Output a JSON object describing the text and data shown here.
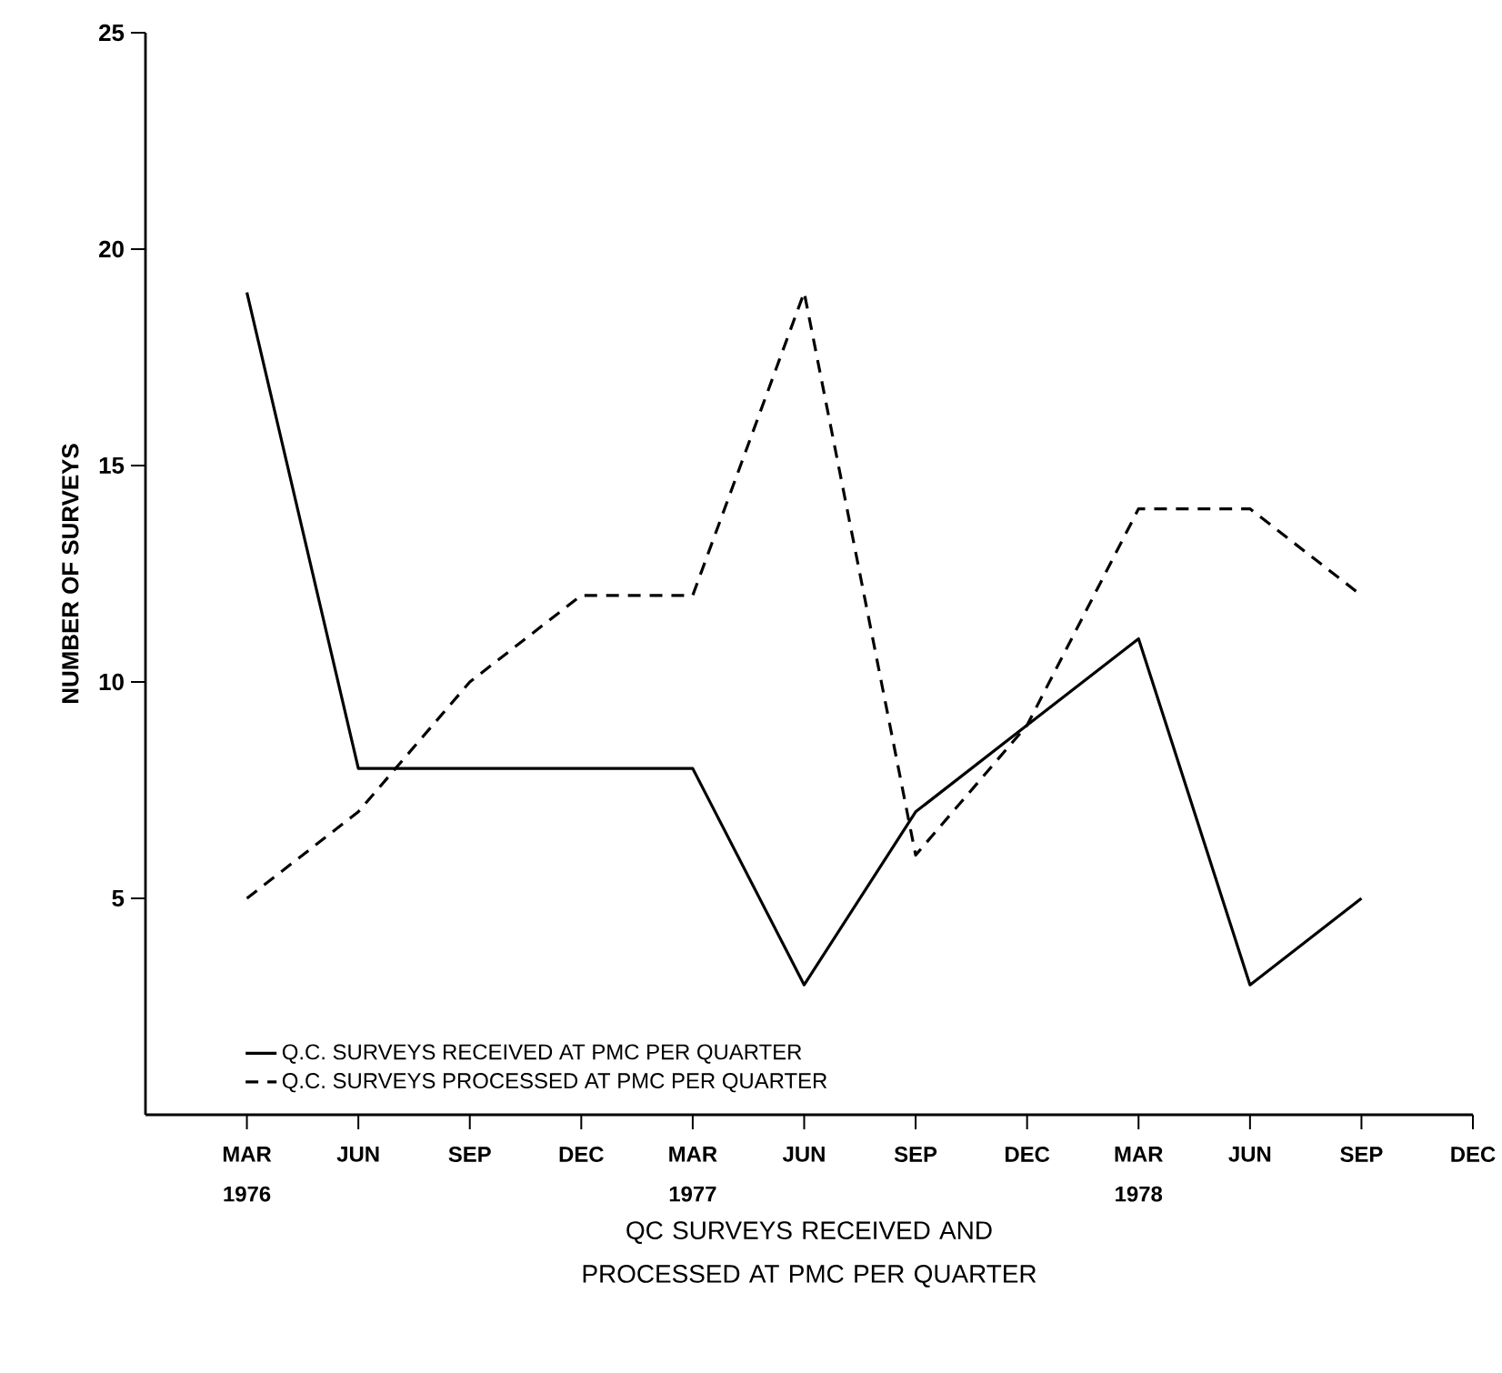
{
  "chart_data": {
    "type": "line",
    "xlabel": "QC SURVEYS RECEIVED AND PROCESSED AT PMC PER QUARTER",
    "ylabel": "NUMBER OF SURVEYS",
    "categories": [
      "MAR 1976",
      "JUN",
      "SEP",
      "DEC",
      "MAR 1977",
      "JUN",
      "SEP",
      "DEC",
      "MAR 1978",
      "JUN",
      "SEP",
      "DEC"
    ],
    "series": [
      {
        "name": "Q.C. SURVEYS RECEIVED AT PMC PER QUARTER",
        "color": "#000000",
        "line_style": "solid",
        "values": [
          19,
          8,
          8,
          8,
          8,
          3,
          7,
          9,
          11,
          3,
          5,
          null
        ]
      },
      {
        "name": "Q.C. SURVEYS PROCESSED AT PMC PER QUARTER",
        "color": "#000000",
        "line_style": "dashed",
        "values": [
          5,
          7,
          10,
          12,
          12,
          19,
          6,
          9,
          14,
          14,
          12,
          null
        ]
      }
    ],
    "ylim": [
      0,
      25
    ],
    "yticks": [
      5,
      10,
      15,
      20,
      25
    ],
    "legend": "bottom left",
    "grid": false,
    "marker": "none"
  }
}
